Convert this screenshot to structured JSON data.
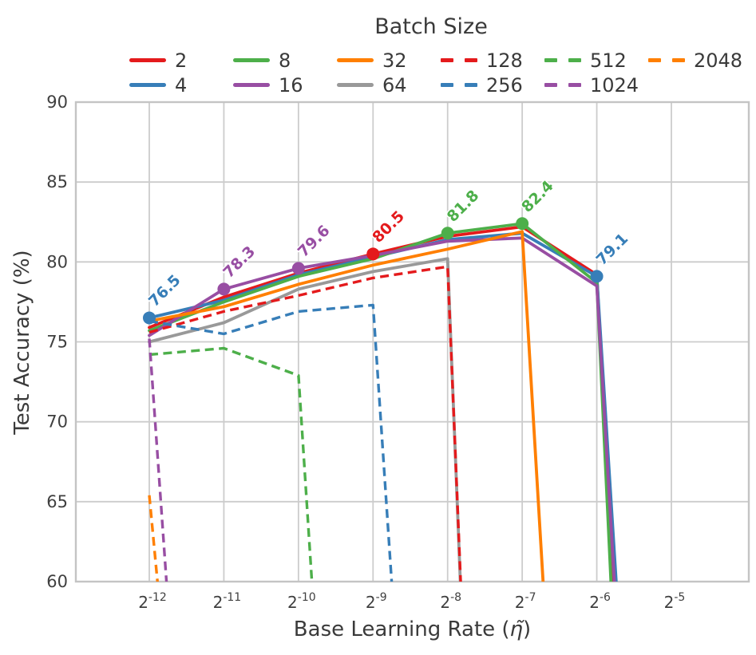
{
  "legend": {
    "title": "Batch Size",
    "entries": [
      {
        "label": "2",
        "color": "#e41a1c",
        "dashed": false
      },
      {
        "label": "4",
        "color": "#377eb8",
        "dashed": false
      },
      {
        "label": "8",
        "color": "#4daf4a",
        "dashed": false
      },
      {
        "label": "16",
        "color": "#984ea3",
        "dashed": false
      },
      {
        "label": "32",
        "color": "#ff7f00",
        "dashed": false
      },
      {
        "label": "64",
        "color": "#999999",
        "dashed": false
      },
      {
        "label": "128",
        "color": "#e41a1c",
        "dashed": true
      },
      {
        "label": "256",
        "color": "#377eb8",
        "dashed": true
      },
      {
        "label": "512",
        "color": "#4daf4a",
        "dashed": true
      },
      {
        "label": "1024",
        "color": "#984ea3",
        "dashed": true
      },
      {
        "label": "2048",
        "color": "#ff7f00",
        "dashed": true
      }
    ]
  },
  "y_axis": {
    "label": "Test Accuracy (%)",
    "ticks": [
      90,
      85,
      80,
      75,
      70,
      65,
      60
    ]
  },
  "x_axis": {
    "label_prefix": "Base Learning Rate (",
    "eta": "η̃",
    "label_suffix": ")",
    "tick_base": "2",
    "tick_exponents": [
      "-12",
      "-11",
      "-10",
      "-9",
      "-8",
      "-7",
      "-6",
      "-5"
    ]
  },
  "chart_data": {
    "type": "line",
    "title": "Batch Size",
    "xlabel": "Base Learning Rate (base-2 log scale)",
    "ylabel": "Test Accuracy (%)",
    "ylim": [
      60,
      90
    ],
    "grid": true,
    "legend_position": "top",
    "x_categories": [
      "2^-12",
      "2^-11",
      "2^-10",
      "2^-9",
      "2^-8",
      "2^-7",
      "2^-6",
      "2^-5"
    ],
    "series": [
      {
        "name": "2",
        "color": "#e41a1c",
        "style": "solid",
        "values": [
          75.9,
          77.8,
          79.3,
          80.5,
          81.6,
          82.2,
          79.2
        ],
        "diverges_after_last": true,
        "divergence_cross_frac": 0.21
      },
      {
        "name": "4",
        "color": "#377eb8",
        "style": "solid",
        "values": [
          76.5,
          77.6,
          79.2,
          80.3,
          81.4,
          81.8,
          79.1
        ],
        "diverges_after_last": true,
        "divergence_cross_frac": 0.26
      },
      {
        "name": "8",
        "color": "#4daf4a",
        "style": "solid",
        "values": [
          75.7,
          77.5,
          79.1,
          80.2,
          81.8,
          82.4,
          78.7
        ],
        "diverges_after_last": true,
        "divergence_cross_frac": 0.19
      },
      {
        "name": "16",
        "color": "#984ea3",
        "style": "solid",
        "values": [
          75.4,
          78.3,
          79.6,
          80.4,
          81.3,
          81.5,
          78.5
        ],
        "diverges_after_last": true,
        "divergence_cross_frac": 0.235
      },
      {
        "name": "32",
        "color": "#ff7f00",
        "style": "solid",
        "values": [
          76.3,
          77.2,
          78.6,
          79.8,
          80.8,
          81.9
        ],
        "diverges_after_last": true,
        "divergence_cross_frac": 0.28
      },
      {
        "name": "64",
        "color": "#999999",
        "style": "solid",
        "values": [
          75.0,
          76.2,
          78.3,
          79.4,
          80.2
        ],
        "diverges_after_last": true,
        "divergence_cross_frac": 0.17
      },
      {
        "name": "128",
        "color": "#e41a1c",
        "style": "dashed",
        "values": [
          75.6,
          76.9,
          77.9,
          79.0,
          79.7
        ],
        "diverges_after_last": true,
        "divergence_cross_frac": 0.175
      },
      {
        "name": "256",
        "color": "#377eb8",
        "style": "dashed",
        "values": [
          76.3,
          75.5,
          76.9,
          77.3
        ],
        "diverges_after_last": true,
        "divergence_cross_frac": 0.25
      },
      {
        "name": "512",
        "color": "#4daf4a",
        "style": "dashed",
        "values": [
          74.2,
          74.6,
          72.9
        ],
        "diverges_after_last": true,
        "divergence_cross_frac": 0.18
      },
      {
        "name": "1024",
        "color": "#984ea3",
        "style": "dashed",
        "values": [
          75.2
        ],
        "diverges_after_last": true,
        "divergence_cross_frac": 0.23
      },
      {
        "name": "2048",
        "color": "#ff7f00",
        "style": "dashed",
        "values": [
          65.4
        ],
        "diverges_after_last": true,
        "divergence_cross_frac": 0.11
      }
    ],
    "annotations": [
      {
        "series": "4",
        "x_index": 0,
        "value": 76.5,
        "text": "76.5"
      },
      {
        "series": "16",
        "x_index": 1,
        "value": 78.3,
        "text": "78.3"
      },
      {
        "series": "16",
        "x_index": 2,
        "value": 79.6,
        "text": "79.6"
      },
      {
        "series": "2",
        "x_index": 3,
        "value": 80.5,
        "text": "80.5"
      },
      {
        "series": "8",
        "x_index": 4,
        "value": 81.8,
        "text": "81.8"
      },
      {
        "series": "8",
        "x_index": 5,
        "value": 82.4,
        "text": "82.4"
      },
      {
        "series": "4",
        "x_index": 6,
        "value": 79.1,
        "text": "79.1"
      }
    ]
  }
}
